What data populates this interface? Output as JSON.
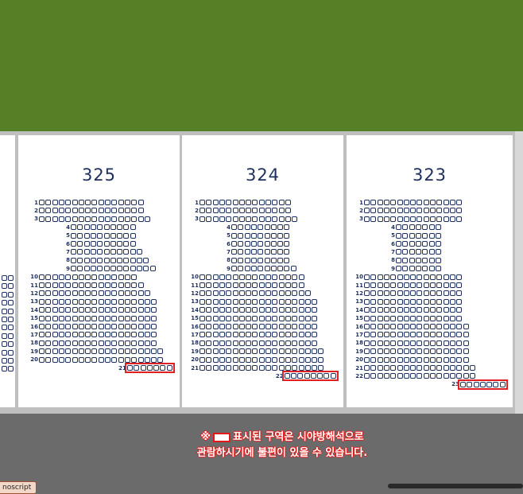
{
  "colors": {
    "field": "#568025",
    "stand": "#bfbfbf",
    "seat_border": "#1d2f5c",
    "obstructed": "#e02020",
    "background": "#6b6b6b"
  },
  "sections": [
    {
      "name": "325",
      "rows": [
        {
          "label": "1",
          "seats": 16
        },
        {
          "label": "2",
          "seats": 16
        },
        {
          "label": "3",
          "seats": 17
        },
        {
          "label": "4",
          "seats": 10
        },
        {
          "label": "5",
          "seats": 10
        },
        {
          "label": "6",
          "seats": 10
        },
        {
          "label": "7",
          "seats": 11
        },
        {
          "label": "8",
          "seats": 12
        },
        {
          "label": "9",
          "seats": 13
        },
        {
          "label": "10",
          "seats": 15
        },
        {
          "label": "11",
          "seats": 16
        },
        {
          "label": "12",
          "seats": 17
        },
        {
          "label": "13",
          "seats": 18
        },
        {
          "label": "14",
          "seats": 18
        },
        {
          "label": "15",
          "seats": 18
        },
        {
          "label": "16",
          "seats": 18
        },
        {
          "label": "17",
          "seats": 18
        },
        {
          "label": "18",
          "seats": 18
        },
        {
          "label": "19",
          "seats": 19
        },
        {
          "label": "20",
          "seats": 19
        },
        {
          "label": "21",
          "seats": 7
        }
      ],
      "obstructed_rows": [
        "21"
      ]
    },
    {
      "name": "324",
      "rows": [
        {
          "label": "1",
          "seats": 14
        },
        {
          "label": "2",
          "seats": 14
        },
        {
          "label": "3",
          "seats": 15
        },
        {
          "label": "4",
          "seats": 9
        },
        {
          "label": "5",
          "seats": 9
        },
        {
          "label": "6",
          "seats": 9
        },
        {
          "label": "7",
          "seats": 9
        },
        {
          "label": "8",
          "seats": 9
        },
        {
          "label": "9",
          "seats": 10
        },
        {
          "label": "10",
          "seats": 16
        },
        {
          "label": "11",
          "seats": 16
        },
        {
          "label": "12",
          "seats": 17
        },
        {
          "label": "13",
          "seats": 18
        },
        {
          "label": "14",
          "seats": 18
        },
        {
          "label": "15",
          "seats": 18
        },
        {
          "label": "16",
          "seats": 18
        },
        {
          "label": "17",
          "seats": 18
        },
        {
          "label": "18",
          "seats": 18
        },
        {
          "label": "19",
          "seats": 19
        },
        {
          "label": "20",
          "seats": 19
        },
        {
          "label": "21",
          "seats": 19
        },
        {
          "label": "22",
          "seats": 8
        }
      ],
      "obstructed_rows": [
        "22"
      ]
    },
    {
      "name": "323",
      "rows": [
        {
          "label": "1",
          "seats": 15
        },
        {
          "label": "2",
          "seats": 15
        },
        {
          "label": "3",
          "seats": 15
        },
        {
          "label": "4",
          "seats": 7
        },
        {
          "label": "5",
          "seats": 7
        },
        {
          "label": "6",
          "seats": 7
        },
        {
          "label": "7",
          "seats": 7
        },
        {
          "label": "8",
          "seats": 7
        },
        {
          "label": "9",
          "seats": 7
        },
        {
          "label": "10",
          "seats": 15
        },
        {
          "label": "11",
          "seats": 15
        },
        {
          "label": "12",
          "seats": 15
        },
        {
          "label": "13",
          "seats": 15
        },
        {
          "label": "14",
          "seats": 15
        },
        {
          "label": "15",
          "seats": 15
        },
        {
          "label": "16",
          "seats": 16
        },
        {
          "label": "17",
          "seats": 16
        },
        {
          "label": "18",
          "seats": 16
        },
        {
          "label": "19",
          "seats": 16
        },
        {
          "label": "20",
          "seats": 16
        },
        {
          "label": "21",
          "seats": 17
        },
        {
          "label": "22",
          "seats": 17
        },
        {
          "label": "23",
          "seats": 7
        }
      ],
      "obstructed_rows": [
        "23"
      ]
    }
  ],
  "notice": {
    "line1_prefix": "※",
    "line1_text": "표시된 구역은 시야방해석으로",
    "line2_text": "관람하시기에 불편이 있을 수 있습니다."
  },
  "bottom_tag": "noscript"
}
